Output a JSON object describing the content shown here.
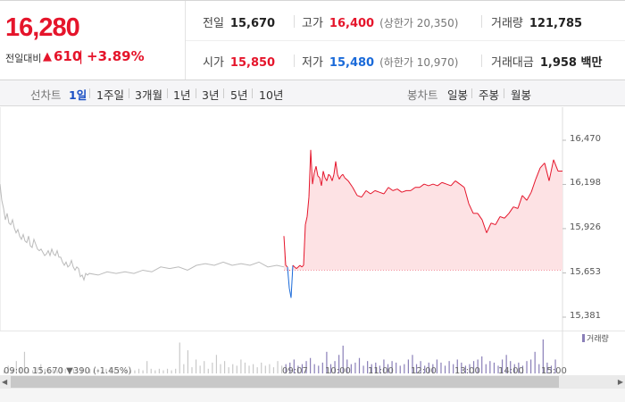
{
  "quote": {
    "price": "16,280",
    "change_label": "전일대비",
    "change_arrow": "▲",
    "change_value": "610",
    "change_pct": "+3.89%",
    "prev_close_label": "전일",
    "prev_close": "15,670",
    "high_label": "고가",
    "high": "16,400",
    "upper_limit": "(상한가 20,350)",
    "volume_label": "거래량",
    "volume": "121,785",
    "open_label": "시가",
    "open": "15,850",
    "low_label": "저가",
    "low": "15,480",
    "lower_limit": "(하한가 10,970)",
    "amount_label": "거래대금",
    "amount": "1,958 백만"
  },
  "toolbar": {
    "line_chart_label": "선차트",
    "periods": [
      "1일",
      "1주일",
      "3개월",
      "1년",
      "3년",
      "5년",
      "10년"
    ],
    "active_period": "1일",
    "candle_label": "봉차트",
    "candles": [
      "일봉",
      "주봉",
      "월봉"
    ]
  },
  "chart_data": {
    "type": "line",
    "y_ticks": [
      "16,470",
      "16,198",
      "15,926",
      "15,653",
      "15,381"
    ],
    "ylim": [
      15381,
      16470
    ],
    "reference_line": 15670,
    "colors": {
      "up": "#e5152b",
      "down": "#1a6ad9",
      "prev_day": "#bbbbbb",
      "fill": "#fde2e4",
      "volume": "#8a7fb8"
    },
    "series": [
      {
        "x": [
          0,
          2,
          4,
          6,
          8,
          10,
          12,
          14,
          16,
          18,
          20,
          22,
          24,
          26,
          28,
          30,
          32,
          34,
          36,
          38,
          40,
          42,
          44,
          46,
          48,
          50,
          52,
          54,
          56,
          58,
          60,
          62,
          64,
          66,
          68,
          70,
          72,
          74,
          76,
          78,
          80,
          82,
          84,
          86,
          88,
          90,
          92,
          94,
          96,
          98,
          100,
          110,
          120,
          130,
          140,
          150,
          160,
          170,
          180,
          190,
          200,
          210,
          220,
          230,
          240,
          250,
          260,
          270,
          280,
          290,
          300,
          310,
          318
        ],
        "values": [
          16200,
          16100,
          16050,
          15980,
          16020,
          15960,
          15950,
          15980,
          15930,
          15900,
          15920,
          15880,
          15860,
          15890,
          15850,
          15840,
          15880,
          15820,
          15810,
          15860,
          15830,
          15800,
          15790,
          15800,
          15780,
          15760,
          15770,
          15790,
          15760,
          15800,
          15770,
          15760,
          15790,
          15750,
          15750,
          15720,
          15700,
          15720,
          15690,
          15700,
          15730,
          15690,
          15670,
          15690,
          15680,
          15630,
          15640,
          15610,
          15650,
          15640,
          15650,
          15640,
          15660,
          15650,
          15660,
          15650,
          15670,
          15660,
          15690,
          15680,
          15690,
          15670,
          15700,
          15710,
          15700,
          15720,
          15700,
          15710,
          15700,
          15720,
          15690,
          15700,
          15690
        ]
      },
      {
        "x": [
          318,
          320,
          322,
          324,
          326,
          328,
          330,
          332,
          334,
          336,
          338,
          340,
          342,
          344,
          346,
          348,
          350,
          352,
          354,
          356,
          358,
          360,
          362,
          364,
          366,
          368,
          370,
          372,
          374,
          376,
          378,
          380,
          382,
          384,
          386,
          390,
          395,
          400,
          405,
          410,
          415,
          420,
          425,
          430,
          435,
          440,
          445,
          450,
          455,
          460,
          465,
          470,
          475,
          480,
          485,
          490,
          495,
          500,
          505,
          510,
          515,
          520,
          525,
          530,
          535,
          540,
          545,
          550,
          555,
          560,
          565,
          570,
          575,
          580,
          585,
          590,
          595,
          600,
          605,
          610,
          615,
          620,
          625,
          630
        ],
        "values": [
          15880,
          15700,
          15690,
          15560,
          15500,
          15700,
          15690,
          15680,
          15690,
          15700,
          15690,
          15700,
          15950,
          16000,
          16120,
          16410,
          16200,
          16270,
          16310,
          16250,
          16240,
          16190,
          16280,
          16240,
          16220,
          16260,
          16250,
          16220,
          16260,
          16340,
          16260,
          16230,
          16250,
          16260,
          16240,
          16220,
          16180,
          16130,
          16120,
          16160,
          16140,
          16160,
          16150,
          16140,
          16180,
          16160,
          16170,
          16150,
          16160,
          16160,
          16180,
          16180,
          16200,
          16190,
          16200,
          16190,
          16210,
          16200,
          16190,
          16220,
          16200,
          16180,
          16080,
          16020,
          16020,
          15980,
          15900,
          15960,
          15950,
          16000,
          15990,
          16020,
          16060,
          16050,
          16130,
          16100,
          16150,
          16230,
          16300,
          16330,
          16220,
          16350,
          16280,
          16280
        ]
      }
    ],
    "volume": [
      2,
      5,
      3,
      8,
      4,
      14,
      3,
      2,
      4,
      6,
      3,
      2,
      3,
      2,
      4,
      3,
      2,
      3,
      2,
      4,
      3,
      3,
      2,
      3,
      2,
      3,
      4,
      2,
      3,
      2,
      3,
      2,
      2,
      3,
      2,
      8,
      3,
      2,
      3,
      2,
      3,
      2,
      3,
      20,
      6,
      15,
      4,
      9,
      5,
      8,
      3,
      7,
      12,
      6,
      8,
      4,
      6,
      5,
      9,
      7,
      5,
      6,
      4,
      7,
      5,
      6,
      4,
      8,
      5,
      6,
      7,
      9,
      5,
      6,
      8,
      10,
      6,
      5,
      7,
      14,
      6,
      8,
      12,
      18,
      9,
      6,
      7,
      10,
      5,
      8,
      6,
      7,
      5,
      9,
      6,
      8,
      7,
      5,
      6,
      9,
      12,
      6,
      8,
      5,
      7,
      6,
      9,
      7,
      5,
      8,
      6,
      9,
      7,
      5,
      6,
      8,
      9,
      11,
      6,
      8,
      7,
      5,
      9,
      12,
      8,
      6,
      7,
      5,
      8,
      9,
      14,
      6,
      22,
      7,
      5,
      9
    ]
  },
  "vol_legend": "거래량",
  "partial_bottom_labels": [
    "09:00  15,670 ▼390 (-1.45%)",
    "09:07",
    "10:00",
    "11:00",
    "12:00",
    "13:00",
    "14:00",
    "15:00"
  ]
}
